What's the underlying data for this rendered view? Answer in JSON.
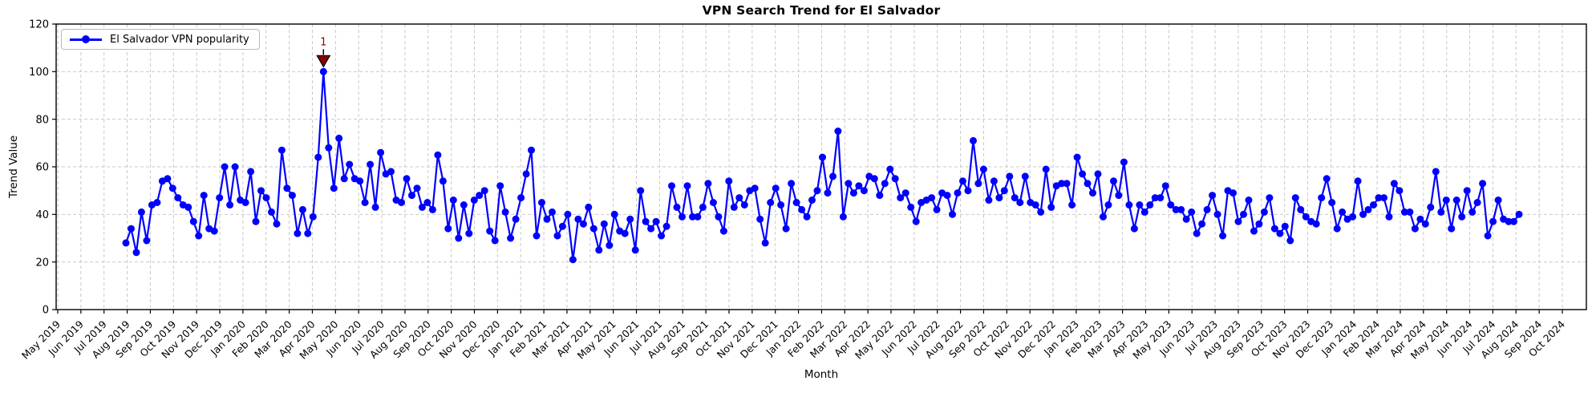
{
  "chart_data": {
    "type": "line",
    "title": "VPN Search Trend for El Salvador",
    "xlabel": "Month",
    "ylabel": "Trend Value",
    "ylim": [
      0,
      120
    ],
    "y_ticks": [
      0,
      20,
      40,
      60,
      80,
      100,
      120
    ],
    "grid": true,
    "x_tick_rotation": 45,
    "legend": {
      "position": "upper-left",
      "entries": [
        {
          "label": "El Salvador VPN popularity",
          "color": "#0000ff",
          "marker": "circle"
        }
      ]
    },
    "x_tick_labels": [
      "May 2019",
      "Jun 2019",
      "Jul 2019",
      "Aug 2019",
      "Sep 2019",
      "Oct 2019",
      "Nov 2019",
      "Dec 2019",
      "Jan 2020",
      "Feb 2020",
      "Mar 2020",
      "Apr 2020",
      "May 2020",
      "Jun 2020",
      "Jul 2020",
      "Aug 2020",
      "Sep 2020",
      "Oct 2020",
      "Nov 2020",
      "Dec 2020",
      "Jan 2021",
      "Feb 2021",
      "Mar 2021",
      "Apr 2021",
      "May 2021",
      "Jun 2021",
      "Jul 2021",
      "Aug 2021",
      "Sep 2021",
      "Oct 2021",
      "Nov 2021",
      "Dec 2021",
      "Jan 2022",
      "Feb 2022",
      "Mar 2022",
      "Apr 2022",
      "May 2022",
      "Jun 2022",
      "Jul 2022",
      "Aug 2022",
      "Sep 2022",
      "Oct 2022",
      "Nov 2022",
      "Dec 2022",
      "Jan 2023",
      "Feb 2023",
      "Mar 2023",
      "Apr 2023",
      "May 2023",
      "Jun 2023",
      "Jul 2023",
      "Aug 2023",
      "Sep 2023",
      "Oct 2023",
      "Nov 2023",
      "Dec 2023",
      "Jan 2024",
      "Feb 2024",
      "Mar 2024",
      "Apr 2024",
      "May 2024",
      "Jun 2024",
      "Jul 2024",
      "Aug 2024",
      "Sep 2024",
      "Oct 2024"
    ],
    "data_start_label": "Aug 2019",
    "data_end_label": "Aug 2024",
    "series": [
      {
        "name": "El Salvador VPN popularity",
        "color": "#0000ff",
        "marker": "o",
        "values": [
          28,
          34,
          24,
          41,
          29,
          44,
          45,
          54,
          55,
          51,
          47,
          44,
          43,
          37,
          31,
          48,
          34,
          33,
          47,
          60,
          44,
          60,
          46,
          45,
          58,
          37,
          50,
          47,
          41,
          36,
          67,
          51,
          48,
          32,
          42,
          32,
          39,
          64,
          100,
          68,
          51,
          72,
          55,
          61,
          55,
          54,
          45,
          61,
          43,
          66,
          57,
          58,
          46,
          45,
          55,
          48,
          51,
          43,
          45,
          42,
          65,
          54,
          34,
          46,
          30,
          44,
          32,
          46,
          48,
          50,
          33,
          29,
          52,
          41,
          30,
          38,
          47,
          57,
          67,
          31,
          45,
          38,
          41,
          31,
          35,
          40,
          21,
          38,
          36,
          43,
          34,
          25,
          36,
          27,
          40,
          33,
          32,
          38,
          25,
          50,
          37,
          34,
          37,
          31,
          35,
          52,
          43,
          39,
          52,
          39,
          39,
          43,
          53,
          45,
          39,
          33,
          54,
          43,
          47,
          44,
          50,
          51,
          38,
          28,
          45,
          51,
          44,
          34,
          53,
          45,
          42,
          39,
          46,
          50,
          64,
          49,
          56,
          75,
          39,
          53,
          49,
          52,
          50,
          56,
          55,
          48,
          53,
          59,
          55,
          47,
          49,
          43,
          37,
          45,
          46,
          47,
          42,
          49,
          48,
          40,
          49,
          54,
          50,
          71,
          53,
          59,
          46,
          54,
          47,
          50,
          56,
          47,
          45,
          56,
          45,
          44,
          41,
          59,
          43,
          52,
          53,
          53,
          44,
          64,
          57,
          53,
          49,
          57,
          39,
          44,
          54,
          48,
          62,
          44,
          34,
          44,
          41,
          44,
          47,
          47,
          52,
          44,
          42,
          42,
          38,
          41,
          32,
          36,
          42,
          48,
          40,
          31,
          50,
          49,
          37,
          40,
          46,
          33,
          36,
          41,
          47,
          34,
          32,
          35,
          29,
          47,
          42,
          39,
          37,
          36,
          47,
          55,
          45,
          34,
          41,
          38,
          39,
          54,
          40,
          42,
          44,
          47,
          47,
          39,
          53,
          50,
          41,
          41,
          34,
          38,
          36,
          43,
          58,
          41,
          46,
          34,
          46,
          39,
          50,
          41,
          45,
          53,
          31,
          37,
          46,
          38,
          37,
          37,
          40
        ]
      }
    ],
    "annotations": [
      {
        "label": "1",
        "point_index": 38,
        "value": 100,
        "marker": "triangle-down",
        "color": "#8B0000"
      }
    ],
    "colors": {
      "line": "#0000ff",
      "grid": "#c9c9c9",
      "axis": "#000000",
      "annotation": "#8B0000",
      "background": "#ffffff"
    }
  }
}
